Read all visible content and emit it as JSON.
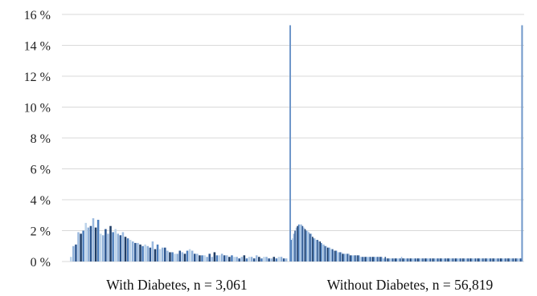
{
  "chart_data": {
    "type": "bar",
    "title": "",
    "xlabel": "",
    "ylabel": "",
    "ylim": [
      0,
      16
    ],
    "y_ticks": [
      "0 %",
      "2 %",
      "4 %",
      "6 %",
      "8 %",
      "10 %",
      "12 %",
      "14 %",
      "16 %"
    ],
    "grid": true,
    "legend": "none",
    "colors": {
      "grid": "#d9d9d9",
      "separator": "#6f97c9",
      "bar_palette": [
        "#bcd3ea",
        "#4e7fbd",
        "#1f3d66",
        "#9cbadf",
        "#2c5690",
        "#8fb0d8"
      ]
    },
    "groups": [
      {
        "name": "With Diabetes, n = 3,061",
        "values": [
          0.3,
          1.0,
          1.1,
          1.9,
          1.8,
          2.0,
          2.5,
          2.2,
          2.3,
          2.8,
          2.2,
          2.7,
          1.8,
          1.7,
          2.1,
          1.8,
          2.3,
          1.9,
          2.1,
          1.8,
          1.7,
          1.9,
          1.6,
          1.5,
          1.4,
          1.3,
          1.2,
          1.2,
          1.1,
          1.0,
          1.1,
          1.0,
          0.9,
          1.3,
          0.8,
          1.1,
          0.8,
          0.9,
          0.9,
          0.7,
          0.6,
          0.6,
          0.5,
          0.5,
          0.7,
          0.6,
          0.5,
          0.7,
          0.8,
          0.7,
          0.5,
          0.5,
          0.4,
          0.4,
          0.4,
          0.3,
          0.5,
          0.3,
          0.6,
          0.4,
          0.4,
          0.5,
          0.4,
          0.4,
          0.3,
          0.4,
          0.3,
          0.3,
          0.2,
          0.3,
          0.4,
          0.2,
          0.3,
          0.3,
          0.2,
          0.4,
          0.3,
          0.2,
          0.3,
          0.3,
          0.2,
          0.2,
          0.3,
          0.2,
          0.3,
          0.3,
          0.2,
          0.2
        ]
      },
      {
        "name": "Without Diabetes, n = 56,819",
        "values": [
          15.3,
          1.4,
          1.5,
          1.8,
          2.0,
          2.2,
          2.3,
          2.4,
          2.4,
          2.4,
          2.3,
          2.2,
          2.1,
          2.0,
          2.0,
          1.9,
          1.8,
          1.8,
          1.6,
          1.5,
          1.5,
          1.4,
          1.4,
          1.3,
          1.3,
          1.2,
          1.1,
          1.1,
          1.0,
          1.0,
          0.9,
          0.9,
          0.9,
          0.8,
          0.8,
          0.7,
          0.7,
          0.7,
          0.6,
          0.6,
          0.6,
          0.6,
          0.5,
          0.5,
          0.5,
          0.5,
          0.5,
          0.5,
          0.4,
          0.4,
          0.4,
          0.4,
          0.4,
          0.4,
          0.4,
          0.4,
          0.3,
          0.3,
          0.3,
          0.3,
          0.3,
          0.3,
          0.3,
          0.3,
          0.3,
          0.3,
          0.3,
          0.3,
          0.3,
          0.3,
          0.3,
          0.3,
          0.3,
          0.3,
          0.2,
          0.2,
          0.3,
          0.2,
          0.2,
          0.2,
          0.2,
          0.2,
          0.2,
          0.2,
          0.2,
          0.2,
          0.2,
          0.2,
          0.2,
          0.3,
          0.2,
          0.2,
          0.2,
          0.2,
          0.2,
          0.2,
          0.2,
          0.2,
          0.2,
          0.2,
          0.2,
          0.2,
          0.2,
          0.2,
          0.2,
          0.2,
          0.2,
          0.2,
          0.2,
          0.2,
          0.2,
          0.2,
          0.2,
          0.2,
          0.2,
          0.2,
          0.2,
          0.2,
          0.2,
          0.2,
          0.2,
          0.2,
          0.2,
          0.2,
          0.2,
          0.2,
          0.2,
          0.2,
          0.2,
          0.2,
          0.2,
          0.2,
          0.2,
          0.2,
          0.2,
          0.2,
          0.2,
          0.2,
          0.2,
          0.2,
          0.2,
          0.2,
          0.2,
          0.2,
          0.2,
          0.2,
          0.2,
          0.2,
          0.2,
          0.2,
          0.2,
          0.2,
          0.2,
          0.2,
          0.2,
          0.2,
          0.2,
          0.2,
          0.2,
          0.2,
          0.2,
          0.2,
          0.2,
          0.2,
          0.2,
          0.2,
          0.2,
          0.2,
          0.2,
          0.2,
          0.2,
          0.2,
          0.2,
          0.2,
          0.2,
          0.2,
          0.2,
          0.2,
          0.2,
          0.2,
          0.2,
          0.2,
          0.2,
          0.2,
          0.2,
          15.3
        ]
      }
    ]
  }
}
